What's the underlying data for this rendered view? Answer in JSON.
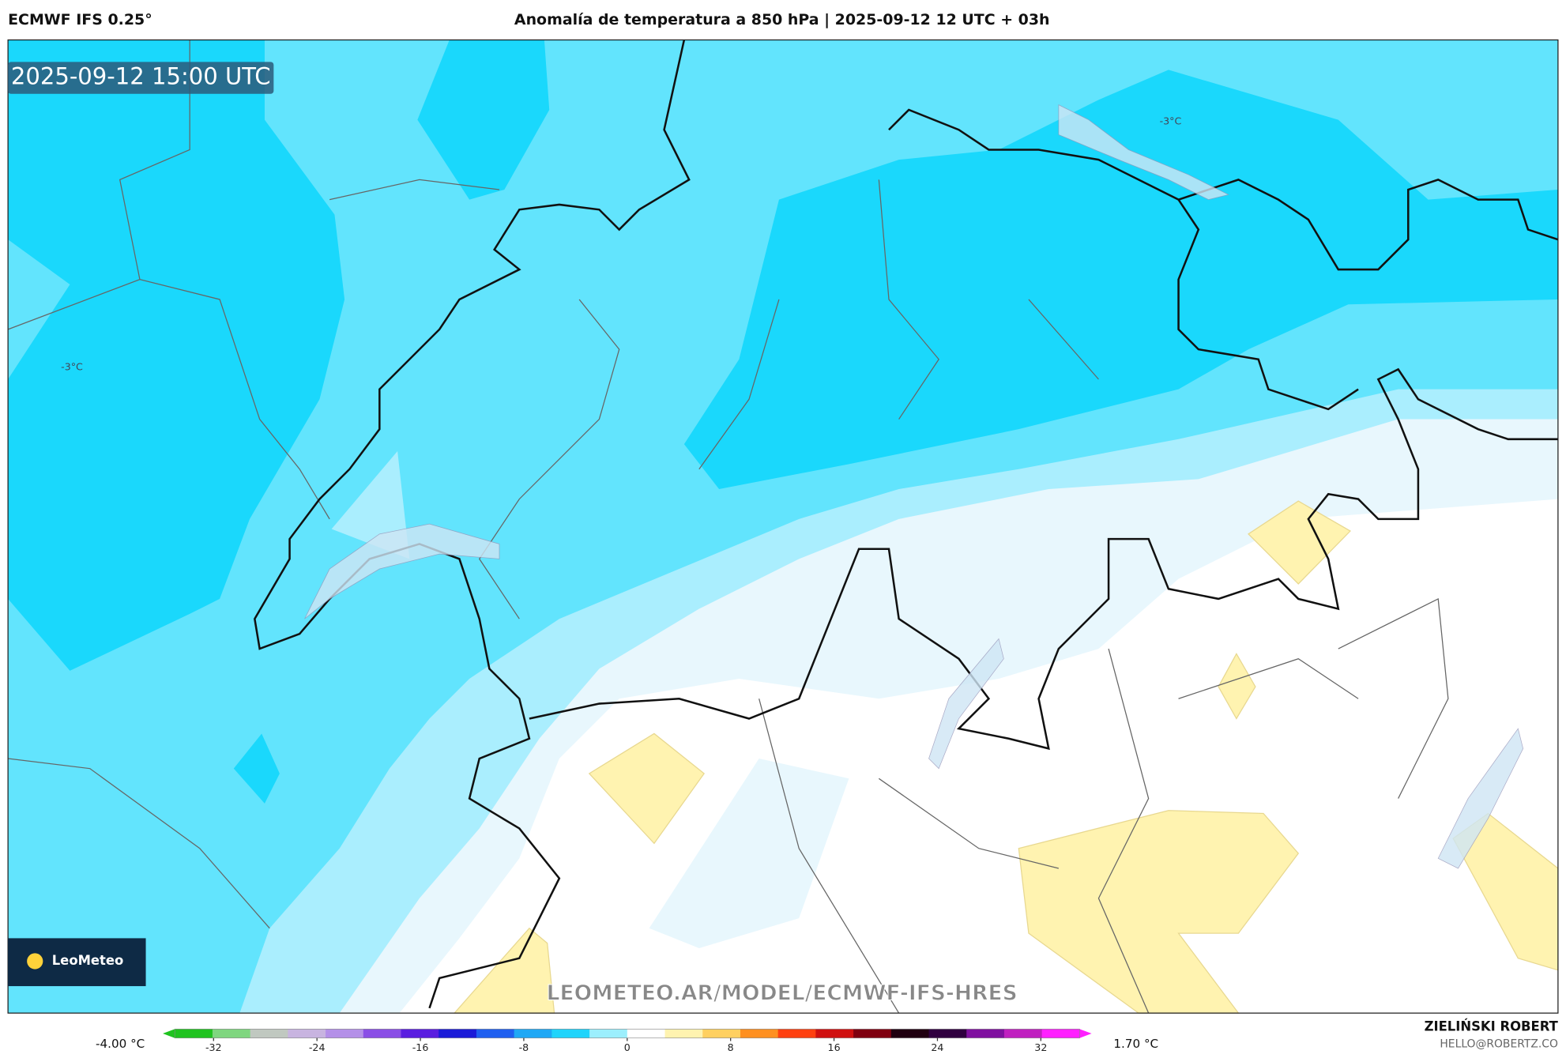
{
  "header": {
    "model": "ECMWF IFS 0.25°",
    "title": "Anomalía de temperatura a 850 hPa | 2025-09-12 12 UTC + 03h"
  },
  "map": {
    "valid_time": "2025-09-12 15:00 UTC",
    "contour_labels": [
      "-3°C",
      "-3°C"
    ],
    "logo": "LeoMeteo",
    "watermark": "LEOMETEO.AR/MODEL/ECMWF-IFS-HRES"
  },
  "colorbar": {
    "min_label": "-4.00 °C",
    "max_label": "1.70 °C",
    "lim": [
      -35,
      35
    ],
    "ticks": [
      -32,
      -24,
      -16,
      -8,
      0,
      8,
      16,
      24,
      32
    ],
    "colors": [
      "#1fc31f",
      "#7fd67f",
      "#c0c8c0",
      "#c8b4e0",
      "#b490e8",
      "#8a4ee6",
      "#5a1ee0",
      "#1b1bd8",
      "#1f5ff0",
      "#1fa8f5",
      "#1fd4fb",
      "#9ceffd",
      "#ffffff",
      "#fff3b0",
      "#ffd060",
      "#ff9020",
      "#ff4010",
      "#d01010",
      "#800010",
      "#200010",
      "#300040",
      "#8010a0",
      "#c020c0",
      "#ff20ff"
    ]
  },
  "credits": {
    "author": "ZIELIŃSKI ROBERT",
    "contact": "HELLO@ROBERTZ.CO"
  }
}
